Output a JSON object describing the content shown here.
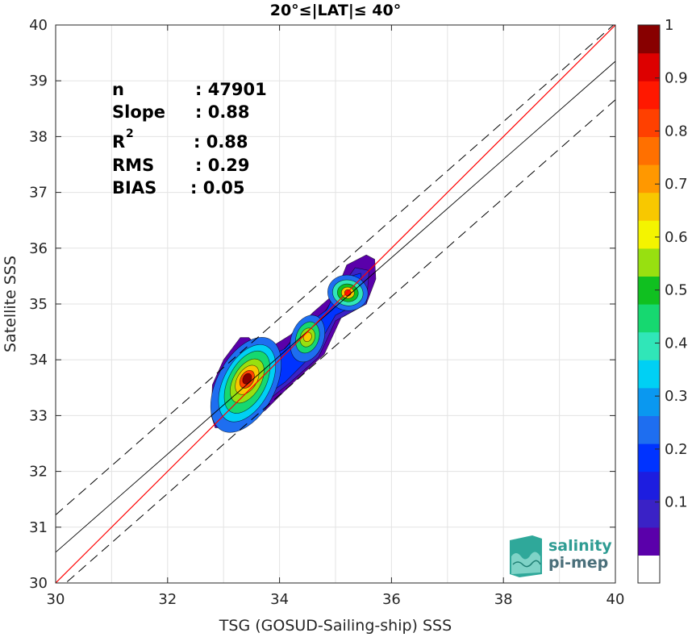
{
  "chart_data": {
    "type": "heatmap",
    "title": "20°≤|LAT|≤ 40°",
    "xlabel": "TSG (GOSUD-Sailing-ship) SSS",
    "ylabel": "Satellite SSS",
    "xlim": [
      30,
      40
    ],
    "ylim": [
      30,
      40
    ],
    "xticks": [
      "30",
      "32",
      "34",
      "36",
      "38",
      "40"
    ],
    "yticks": [
      "30",
      "31",
      "32",
      "33",
      "34",
      "35",
      "36",
      "37",
      "38",
      "39",
      "40"
    ],
    "grid": true,
    "stats": [
      {
        "label": "n",
        "value": ": 47901"
      },
      {
        "label": "Slope",
        "value": ": 0.88"
      },
      {
        "label": "R",
        "sup": "2",
        "value": ": 0.88"
      },
      {
        "label": "RMS",
        "value": ": 0.29"
      },
      {
        "label": "BIAS",
        "value": ": 0.05"
      }
    ],
    "lines": {
      "one_to_one": {
        "x": [
          30,
          40
        ],
        "y": [
          30,
          40
        ],
        "color": "#ff0000"
      },
      "regression": {
        "x": [
          30,
          40
        ],
        "y": [
          30.55,
          39.35
        ],
        "color": "#000000"
      },
      "upper_dashed": {
        "x": [
          30,
          40
        ],
        "y": [
          31.22,
          40.03
        ],
        "color": "#000000"
      },
      "lower_dashed": {
        "x": [
          30,
          40
        ],
        "y": [
          29.84,
          38.66
        ],
        "color": "#000000"
      }
    },
    "density_peaks": [
      {
        "x": 33.42,
        "y": 33.65,
        "level": 1.0
      },
      {
        "x": 34.5,
        "y": 34.4,
        "level": 0.65
      },
      {
        "x": 35.22,
        "y": 35.2,
        "level": 0.85
      }
    ],
    "colorbar": {
      "ticks": [
        "0.1",
        "0.2",
        "0.3",
        "0.4",
        "0.5",
        "0.6",
        "0.7",
        "0.8",
        "0.9",
        "1"
      ],
      "colors": [
        "#ffffff",
        "#5a00aa",
        "#3a22c6",
        "#1d1de0",
        "#0033ff",
        "#1e6ef0",
        "#0a98f0",
        "#00d0f4",
        "#30e6b8",
        "#16d870",
        "#10c020",
        "#98e010",
        "#f4f400",
        "#f8c800",
        "#ff9800",
        "#ff7000",
        "#ff4000",
        "#ff1800",
        "#dd0000",
        "#880000"
      ]
    }
  },
  "logo": {
    "line1": "salinity",
    "line2": "pi-mep"
  }
}
